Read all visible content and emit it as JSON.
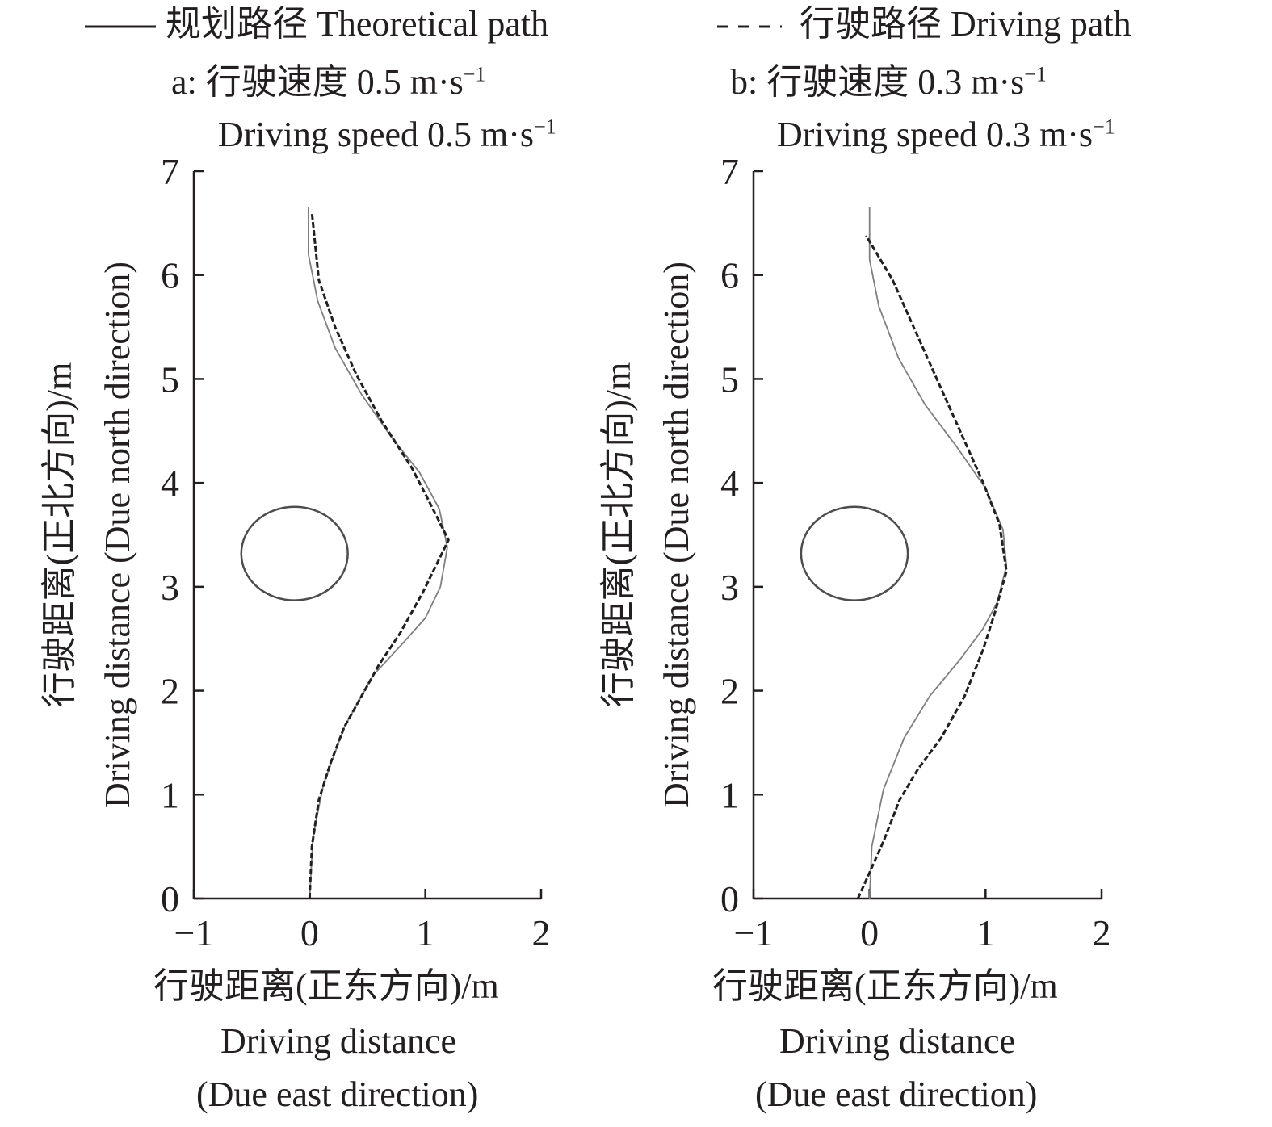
{
  "legend": {
    "theoretical_label": "规划路径 Theoretical path",
    "driving_label": "行驶路径 Driving path"
  },
  "colors": {
    "axis": "#231f20",
    "theoretical": "#7f7f7f",
    "driving": "#231f20",
    "obstacle": "#4d4d4d"
  },
  "chart_data": [
    {
      "type": "line",
      "panel_label": "a:",
      "title": "行驶速度 0.5 m·s",
      "title_en": "Driving speed 0.5 m·s",
      "unit_sup": "−1",
      "xlabel_cn": "行驶距离(正东方向)/m",
      "xlabel_en_1": "Driving distance",
      "xlabel_en_2": "(Due east direction)",
      "ylabel_cn": "行驶距离(正北方向)/m",
      "ylabel_en": "Driving distance (Due north direction)",
      "xlim": [
        -1,
        2
      ],
      "ylim": [
        0,
        7
      ],
      "xticks": [
        "−1",
        "0",
        "1",
        "2"
      ],
      "yticks": [
        "0",
        "1",
        "2",
        "3",
        "4",
        "5",
        "6",
        "7"
      ],
      "obstacle": {
        "cx": -0.13,
        "cy": 3.32,
        "rx": 0.46,
        "ry": 0.45
      },
      "series": [
        {
          "name": "规划路径 Theoretical path",
          "style": "solid",
          "points": [
            [
              0,
              0
            ],
            [
              0.03,
              0.6
            ],
            [
              0.12,
              1.1
            ],
            [
              0.3,
              1.65
            ],
            [
              0.55,
              2.15
            ],
            [
              0.8,
              2.45
            ],
            [
              1.0,
              2.7
            ],
            [
              1.13,
              3.0
            ],
            [
              1.19,
              3.38
            ],
            [
              1.12,
              3.75
            ],
            [
              0.95,
              4.1
            ],
            [
              0.7,
              4.45
            ],
            [
              0.45,
              4.85
            ],
            [
              0.22,
              5.3
            ],
            [
              0.07,
              5.75
            ],
            [
              -0.01,
              6.2
            ],
            [
              -0.01,
              6.65
            ]
          ]
        },
        {
          "name": "行驶路径 Driving path",
          "style": "dashed",
          "points": [
            [
              0,
              0
            ],
            [
              0.02,
              0.5
            ],
            [
              0.08,
              0.95
            ],
            [
              0.18,
              1.3
            ],
            [
              0.3,
              1.65
            ],
            [
              0.45,
              1.95
            ],
            [
              0.6,
              2.25
            ],
            [
              0.78,
              2.55
            ],
            [
              0.98,
              2.95
            ],
            [
              1.2,
              3.45
            ],
            [
              1.02,
              3.85
            ],
            [
              0.88,
              4.15
            ],
            [
              0.62,
              4.6
            ],
            [
              0.4,
              5.05
            ],
            [
              0.22,
              5.5
            ],
            [
              0.08,
              5.95
            ],
            [
              0.02,
              6.6
            ]
          ]
        }
      ]
    },
    {
      "type": "line",
      "panel_label": "b:",
      "title": "行驶速度 0.3 m·s",
      "title_en": "Driving speed 0.3 m·s",
      "unit_sup": "−1",
      "xlabel_cn": "行驶距离(正东方向)/m",
      "xlabel_en_1": "Driving distance",
      "xlabel_en_2": "(Due east direction)",
      "ylabel_cn": "行驶距离(正北方向)/m",
      "ylabel_en": "Driving distance (Due north direction)",
      "xlim": [
        -1,
        2
      ],
      "ylim": [
        0,
        7
      ],
      "xticks": [
        "−1",
        "0",
        "1",
        "2"
      ],
      "yticks": [
        "0",
        "1",
        "2",
        "3",
        "4",
        "5",
        "6",
        "7"
      ],
      "obstacle": {
        "cx": -0.13,
        "cy": 3.32,
        "rx": 0.46,
        "ry": 0.45
      },
      "series": [
        {
          "name": "规划路径 Theoretical path",
          "style": "solid",
          "points": [
            [
              0,
              0
            ],
            [
              0.02,
              0.5
            ],
            [
              0.12,
              1.05
            ],
            [
              0.3,
              1.55
            ],
            [
              0.52,
              1.95
            ],
            [
              0.78,
              2.3
            ],
            [
              0.98,
              2.6
            ],
            [
              1.1,
              2.85
            ],
            [
              1.18,
              3.2
            ],
            [
              1.15,
              3.55
            ],
            [
              1.0,
              3.95
            ],
            [
              0.75,
              4.35
            ],
            [
              0.48,
              4.75
            ],
            [
              0.25,
              5.2
            ],
            [
              0.08,
              5.7
            ],
            [
              0.0,
              6.15
            ],
            [
              0.0,
              6.65
            ]
          ]
        },
        {
          "name": "行驶路径 Driving path",
          "style": "dashed",
          "points": [
            [
              -0.1,
              0
            ],
            [
              0.0,
              0.25
            ],
            [
              0.12,
              0.55
            ],
            [
              0.26,
              0.95
            ],
            [
              0.42,
              1.25
            ],
            [
              0.62,
              1.55
            ],
            [
              0.82,
              1.95
            ],
            [
              0.98,
              2.4
            ],
            [
              1.08,
              2.75
            ],
            [
              1.18,
              3.15
            ],
            [
              1.12,
              3.6
            ],
            [
              0.98,
              4.0
            ],
            [
              0.8,
              4.45
            ],
            [
              0.6,
              4.95
            ],
            [
              0.4,
              5.45
            ],
            [
              0.2,
              5.95
            ],
            [
              -0.03,
              6.38
            ]
          ]
        }
      ]
    }
  ]
}
